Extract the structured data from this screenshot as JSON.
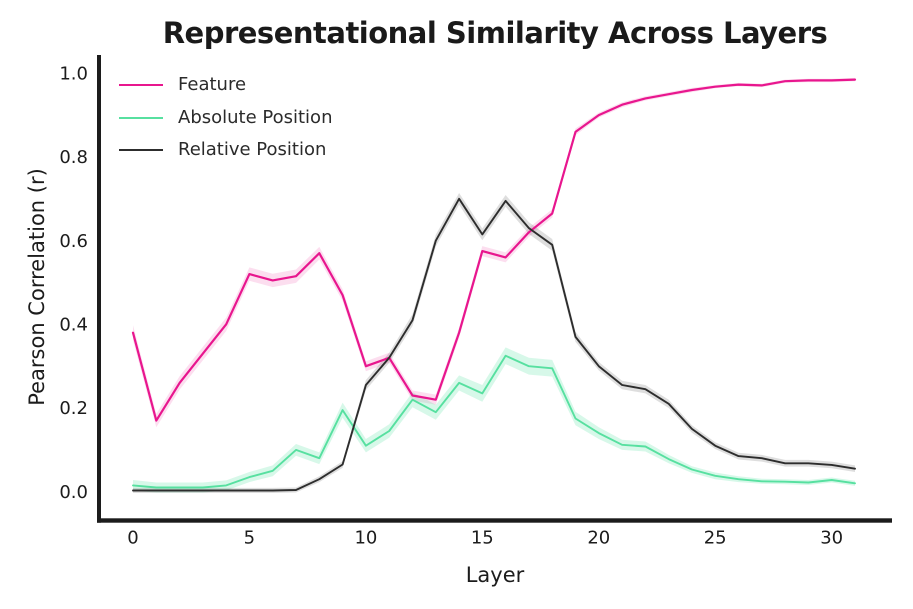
{
  "figure": {
    "title": "Representational Similarity Across Layers"
  },
  "chart_data": {
    "type": "line",
    "title": "Representational Similarity Across Layers",
    "xlabel": "Layer",
    "ylabel": "Pearson Correlation (r)",
    "grid": false,
    "legend_position": "upper-left-inside",
    "xlim": [
      -1.46,
      32.59
    ],
    "ylim": [
      -0.0688,
      1.0437
    ],
    "xtick_values": [
      0,
      5,
      10,
      15,
      20,
      25,
      30
    ],
    "xtick_labels": [
      "0",
      "5",
      "10",
      "15",
      "20",
      "25",
      "30"
    ],
    "ytick_values": [
      0.0,
      0.2,
      0.4,
      0.6,
      0.8,
      1.0
    ],
    "ytick_labels": [
      "0.0",
      "0.2",
      "0.4",
      "0.6",
      "0.8",
      "1.0"
    ],
    "x": [
      0,
      1,
      2,
      3,
      4,
      5,
      6,
      7,
      8,
      9,
      10,
      11,
      12,
      13,
      14,
      15,
      16,
      17,
      18,
      19,
      20,
      21,
      22,
      23,
      24,
      25,
      26,
      27,
      28,
      29,
      30,
      31
    ],
    "series": [
      {
        "name": "Feature",
        "color": "#e8168e",
        "band_color": "rgba(232,22,142,0.14)",
        "line_width": 2.2,
        "values": [
          0.38,
          0.17,
          0.26,
          0.33,
          0.4,
          0.52,
          0.505,
          0.515,
          0.57,
          0.47,
          0.3,
          0.32,
          0.23,
          0.22,
          0.38,
          0.575,
          0.56,
          0.62,
          0.665,
          0.86,
          0.9,
          0.925,
          0.94,
          0.95,
          0.96,
          0.968,
          0.973,
          0.971,
          0.981,
          0.983,
          0.983,
          0.985
        ],
        "band": [
          0.018,
          0.016,
          0.016,
          0.016,
          0.016,
          0.016,
          0.016,
          0.016,
          0.015,
          0.014,
          0.012,
          0.012,
          0.012,
          0.012,
          0.012,
          0.012,
          0.012,
          0.011,
          0.01,
          0.008,
          0.006,
          0.006,
          0.005,
          0.005,
          0.005,
          0.004,
          0.004,
          0.004,
          0.004,
          0.004,
          0.004,
          0.004
        ]
      },
      {
        "name": "Absolute Position",
        "color": "#57e0a0",
        "band_color": "rgba(110,230,175,0.28)",
        "line_width": 1.9,
        "values": [
          0.015,
          0.01,
          0.01,
          0.01,
          0.015,
          0.035,
          0.05,
          0.1,
          0.08,
          0.195,
          0.11,
          0.145,
          0.22,
          0.19,
          0.26,
          0.235,
          0.325,
          0.3,
          0.295,
          0.175,
          0.14,
          0.112,
          0.108,
          0.078,
          0.053,
          0.038,
          0.03,
          0.025,
          0.024,
          0.022,
          0.028,
          0.02
        ],
        "band": [
          0.013,
          0.012,
          0.012,
          0.012,
          0.012,
          0.012,
          0.013,
          0.014,
          0.014,
          0.018,
          0.016,
          0.016,
          0.018,
          0.018,
          0.018,
          0.02,
          0.02,
          0.02,
          0.02,
          0.016,
          0.014,
          0.012,
          0.012,
          0.01,
          0.008,
          0.008,
          0.007,
          0.006,
          0.006,
          0.006,
          0.006,
          0.006
        ]
      },
      {
        "name": "Relative Position",
        "color": "#2d2d2d",
        "band_color": "rgba(70,70,70,0.18)",
        "line_width": 1.9,
        "values": [
          0.003,
          0.003,
          0.003,
          0.003,
          0.003,
          0.003,
          0.003,
          0.004,
          0.03,
          0.065,
          0.255,
          0.32,
          0.41,
          0.6,
          0.7,
          0.615,
          0.695,
          0.63,
          0.59,
          0.37,
          0.3,
          0.255,
          0.245,
          0.21,
          0.15,
          0.11,
          0.085,
          0.08,
          0.068,
          0.068,
          0.064,
          0.055
        ],
        "band": [
          0.006,
          0.006,
          0.006,
          0.006,
          0.006,
          0.006,
          0.006,
          0.006,
          0.007,
          0.008,
          0.012,
          0.012,
          0.014,
          0.014,
          0.014,
          0.014,
          0.014,
          0.014,
          0.014,
          0.012,
          0.01,
          0.01,
          0.01,
          0.01,
          0.009,
          0.008,
          0.008,
          0.008,
          0.008,
          0.008,
          0.008,
          0.008
        ]
      }
    ],
    "axis_color": "#1c1c1c",
    "tick_label_color": "#1c1c1c"
  }
}
